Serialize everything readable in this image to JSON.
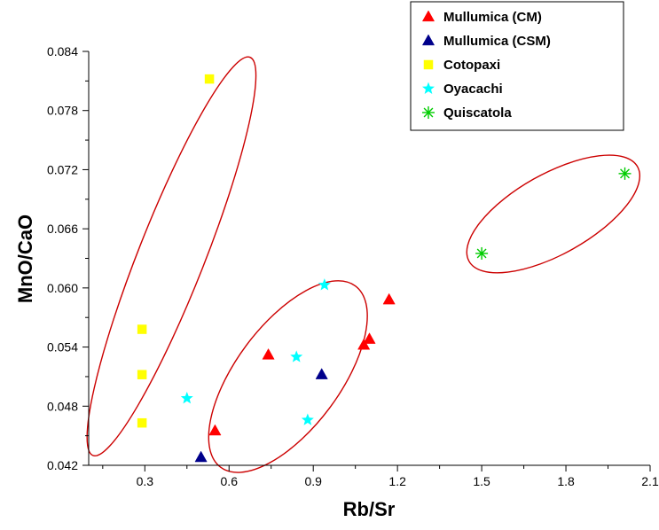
{
  "chart_data": {
    "type": "scatter",
    "title": "",
    "xlabel": "Rb/Sr",
    "ylabel": "MnO/CaO",
    "xlim": [
      0.1,
      2.1
    ],
    "ylim": [
      0.042,
      0.084
    ],
    "x_ticks": [
      {
        "value": 0.3,
        "label": "0.3"
      },
      {
        "value": 0.6,
        "label": "0.6"
      },
      {
        "value": 0.9,
        "label": "0.9"
      },
      {
        "value": 1.2,
        "label": "1.2"
      },
      {
        "value": 1.5,
        "label": "1.5"
      },
      {
        "value": 1.8,
        "label": "1.8"
      },
      {
        "value": 2.1,
        "label": "2.1"
      }
    ],
    "y_ticks": [
      {
        "value": 0.042,
        "label": "0.042"
      },
      {
        "value": 0.048,
        "label": "0.048"
      },
      {
        "value": 0.054,
        "label": "0.054"
      },
      {
        "value": 0.06,
        "label": "0.060"
      },
      {
        "value": 0.066,
        "label": "0.066"
      },
      {
        "value": 0.072,
        "label": "0.072"
      },
      {
        "value": 0.078,
        "label": "0.078"
      },
      {
        "value": 0.084,
        "label": "0.084"
      }
    ],
    "grid": false,
    "legend_position": "top-right",
    "series": [
      {
        "name": "Mullumica (CM)",
        "marker": "triangle",
        "color": "#ff0000",
        "points": [
          [
            0.55,
            0.0455
          ],
          [
            0.74,
            0.0532
          ],
          [
            1.08,
            0.0542
          ],
          [
            1.1,
            0.0548
          ],
          [
            1.17,
            0.0588
          ]
        ]
      },
      {
        "name": "Mullumica (CSM)",
        "marker": "triangle",
        "color": "#00008b",
        "points": [
          [
            0.5,
            0.0428
          ],
          [
            0.93,
            0.0512
          ]
        ]
      },
      {
        "name": "Cotopaxi",
        "marker": "square",
        "color": "#ffff00",
        "points": [
          [
            0.53,
            0.0812
          ],
          [
            0.29,
            0.0558
          ],
          [
            0.29,
            0.0512
          ],
          [
            0.29,
            0.0463
          ]
        ]
      },
      {
        "name": "Oyacachi",
        "marker": "star",
        "color": "#00ffff",
        "points": [
          [
            0.45,
            0.0488
          ],
          [
            0.84,
            0.053
          ],
          [
            0.88,
            0.0466
          ],
          [
            0.94,
            0.0603
          ]
        ]
      },
      {
        "name": "Quiscatola",
        "marker": "asterisk",
        "color": "#00cc00",
        "points": [
          [
            1.5,
            0.0635
          ],
          [
            2.01,
            0.0716
          ]
        ]
      }
    ],
    "ellipses": [
      {
        "cx": 0.395,
        "cy": 0.0632,
        "rx": 0.28,
        "ry": 0.0007,
        "rot_x": 0.28,
        "rot_y": 0.0202,
        "color": "#cc0000"
      },
      {
        "cx": 0.81,
        "cy": 0.051,
        "rx": 0.44,
        "ry": 0.0012,
        "rot_x": 0.24,
        "rot_y": 0.0092,
        "color": "#cc0000"
      },
      {
        "cx": 1.755,
        "cy": 0.0675,
        "rx": 0.34,
        "ry": 0.0004,
        "rot_x": 0.3,
        "rot_y": 0.0048,
        "color": "#cc0000"
      }
    ]
  }
}
